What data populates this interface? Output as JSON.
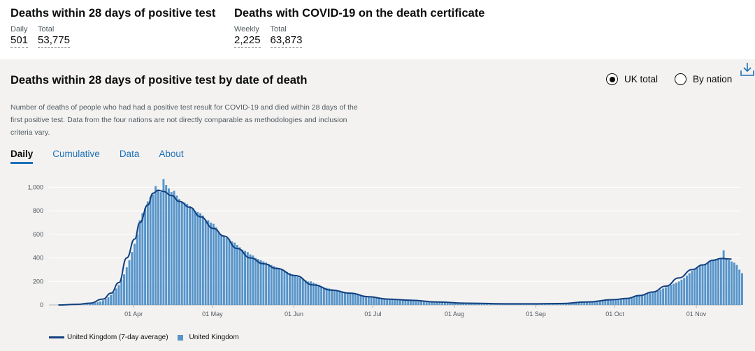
{
  "headline": {
    "block1": {
      "title": "Deaths within 28 days of positive test",
      "metrics": [
        {
          "label": "Daily",
          "value": "501"
        },
        {
          "label": "Total",
          "value": "53,775"
        }
      ]
    },
    "block2": {
      "title": "Deaths with COVID-19 on the death certificate",
      "metrics": [
        {
          "label": "Weekly",
          "value": "2,225"
        },
        {
          "label": "Total",
          "value": "63,873"
        }
      ]
    }
  },
  "card": {
    "title": "Deaths within 28 days of positive test by date of death",
    "radio_options": [
      {
        "label": "UK total",
        "selected": true
      },
      {
        "label": "By nation",
        "selected": false
      }
    ],
    "download_icon": "download-icon",
    "description": "Number of deaths of people who had had a positive test result for COVID-19 and died within 28 days of the first positive test. Data from the four nations are not directly comparable as methodologies and inclusion criteria vary.",
    "tabs": [
      {
        "label": "Daily",
        "active": true
      },
      {
        "label": "Cumulative",
        "active": false
      },
      {
        "label": "Data",
        "active": false
      },
      {
        "label": "About",
        "active": false
      }
    ]
  },
  "colors": {
    "bar": "#5694ca",
    "line": "#12407f",
    "link": "#1d70b8",
    "card_bg": "#f3f2f1",
    "grid": "#ffffff"
  },
  "chart_data": {
    "type": "bar",
    "x_start": "2020-03-03",
    "x_end": "2020-11-18",
    "ylim": [
      0,
      1050
    ],
    "yticks": [
      0,
      200,
      400,
      600,
      800,
      1000
    ],
    "ytick_labels": [
      "0",
      "200",
      "400",
      "600",
      "800",
      "1,000"
    ],
    "xtick_labels": [
      "01 Apr",
      "01 May",
      "01 Jun",
      "01 Jul",
      "01 Aug",
      "01 Sep",
      "01 Oct",
      "01 Nov"
    ],
    "xtick_dates": [
      "2020-04-01",
      "2020-05-01",
      "2020-06-01",
      "2020-07-01",
      "2020-08-01",
      "2020-09-01",
      "2020-10-01",
      "2020-11-01"
    ],
    "grid": true,
    "legend_position": "bottom-left",
    "series": [
      {
        "name": "United Kingdom (7-day average)",
        "kind": "line",
        "points": [
          [
            "2020-03-03",
            0
          ],
          [
            "2020-03-10",
            5
          ],
          [
            "2020-03-15",
            15
          ],
          [
            "2020-03-20",
            50
          ],
          [
            "2020-03-23",
            100
          ],
          [
            "2020-03-26",
            190
          ],
          [
            "2020-03-29",
            400
          ],
          [
            "2020-04-01",
            560
          ],
          [
            "2020-04-03",
            700
          ],
          [
            "2020-04-06",
            850
          ],
          [
            "2020-04-08",
            950
          ],
          [
            "2020-04-10",
            975
          ],
          [
            "2020-04-12",
            965
          ],
          [
            "2020-04-15",
            930
          ],
          [
            "2020-04-18",
            880
          ],
          [
            "2020-04-22",
            830
          ],
          [
            "2020-04-26",
            750
          ],
          [
            "2020-05-01",
            650
          ],
          [
            "2020-05-05",
            585
          ],
          [
            "2020-05-10",
            480
          ],
          [
            "2020-05-15",
            400
          ],
          [
            "2020-05-20",
            350
          ],
          [
            "2020-05-25",
            310
          ],
          [
            "2020-06-01",
            250
          ],
          [
            "2020-06-08",
            170
          ],
          [
            "2020-06-15",
            125
          ],
          [
            "2020-06-22",
            100
          ],
          [
            "2020-06-29",
            70
          ],
          [
            "2020-07-06",
            50
          ],
          [
            "2020-07-15",
            40
          ],
          [
            "2020-07-25",
            25
          ],
          [
            "2020-08-05",
            15
          ],
          [
            "2020-08-20",
            10
          ],
          [
            "2020-09-01",
            10
          ],
          [
            "2020-09-10",
            12
          ],
          [
            "2020-09-20",
            25
          ],
          [
            "2020-09-30",
            45
          ],
          [
            "2020-10-05",
            55
          ],
          [
            "2020-10-10",
            80
          ],
          [
            "2020-10-15",
            110
          ],
          [
            "2020-10-20",
            160
          ],
          [
            "2020-10-25",
            230
          ],
          [
            "2020-10-30",
            300
          ],
          [
            "2020-11-03",
            340
          ],
          [
            "2020-11-07",
            380
          ],
          [
            "2020-11-10",
            395
          ],
          [
            "2020-11-14",
            390
          ]
        ]
      },
      {
        "name": "United Kingdom",
        "kind": "bar",
        "values": [
          0,
          0,
          1,
          1,
          1,
          1,
          2,
          2,
          3,
          4,
          6,
          8,
          10,
          14,
          18,
          24,
          30,
          40,
          52,
          65,
          85,
          110,
          140,
          170,
          215,
          260,
          320,
          380,
          450,
          520,
          600,
          720,
          780,
          820,
          880,
          920,
          940,
          1010,
          980,
          960,
          1070,
          1020,
          990,
          960,
          970,
          930,
          900,
          880,
          870,
          860,
          840,
          820,
          800,
          790,
          780,
          760,
          720,
          720,
          700,
          690,
          660,
          620,
          600,
          590,
          570,
          560,
          540,
          530,
          510,
          490,
          470,
          460,
          450,
          430,
          420,
          400,
          390,
          380,
          370,
          360,
          350,
          340,
          330,
          320,
          310,
          300,
          290,
          280,
          270,
          260,
          250,
          240,
          230,
          220,
          210,
          200,
          200,
          190,
          180,
          170,
          160,
          150,
          145,
          140,
          135,
          130,
          125,
          120,
          115,
          110,
          105,
          100,
          95,
          90,
          85,
          82,
          78,
          75,
          72,
          70,
          68,
          65,
          62,
          60,
          57,
          55,
          52,
          50,
          48,
          46,
          44,
          42,
          40,
          38,
          36,
          34,
          32,
          31,
          30,
          29,
          28,
          27,
          26,
          25,
          24,
          23,
          22,
          21,
          20,
          19,
          18,
          18,
          17,
          16,
          16,
          15,
          15,
          14,
          14,
          13,
          13,
          13,
          12,
          12,
          12,
          12,
          11,
          11,
          11,
          11,
          10,
          10,
          10,
          10,
          10,
          10,
          10,
          10,
          10,
          10,
          10,
          10,
          10,
          10,
          10,
          10,
          10,
          10,
          11,
          11,
          11,
          12,
          12,
          13,
          14,
          15,
          16,
          17,
          18,
          20,
          22,
          24,
          26,
          28,
          30,
          32,
          35,
          38,
          40,
          42,
          45,
          48,
          50,
          52,
          55,
          58,
          60,
          62,
          65,
          70,
          75,
          80,
          85,
          90,
          95,
          100,
          108,
          115,
          120,
          130,
          140,
          150,
          160,
          170,
          180,
          190,
          200,
          215,
          230,
          250,
          270,
          290,
          310,
          320,
          330,
          340,
          350,
          360,
          370,
          380,
          390,
          395,
          400,
          465,
          390,
          380,
          370,
          360,
          340,
          300,
          270
        ]
      }
    ]
  }
}
